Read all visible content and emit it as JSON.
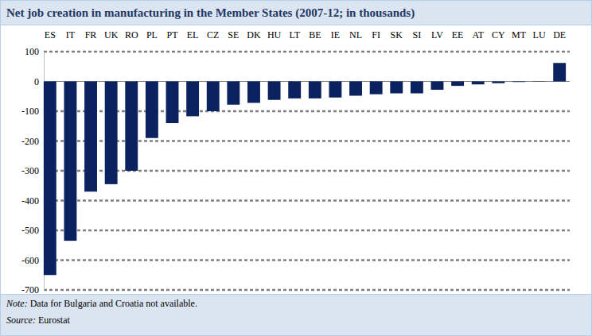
{
  "chart_data": {
    "type": "bar",
    "title": "Net job creation in manufacturing in the Member States (2007-12; in thousands)",
    "categories": [
      "ES",
      "IT",
      "FR",
      "UK",
      "RO",
      "PL",
      "PT",
      "EL",
      "CZ",
      "SE",
      "DK",
      "HU",
      "LT",
      "BE",
      "IE",
      "NL",
      "FI",
      "SK",
      "SI",
      "LV",
      "EE",
      "AT",
      "CY",
      "MT",
      "LU",
      "DE"
    ],
    "values": [
      -650,
      -535,
      -370,
      -345,
      -300,
      -190,
      -140,
      -117,
      -100,
      -78,
      -72,
      -62,
      -57,
      -57,
      -54,
      -48,
      -43,
      -40,
      -40,
      -28,
      -15,
      -10,
      -6,
      -2,
      -1,
      62
    ],
    "color": "#0b2260",
    "ylim": [
      -700,
      100
    ],
    "yticks": [
      -700,
      -600,
      -500,
      -400,
      -300,
      -200,
      -100,
      0,
      100
    ],
    "grid": true,
    "note": {
      "label": "Note:",
      "text": "Data for Bulgaria and Croatia not available."
    },
    "source": {
      "label": "Source:",
      "text": "Eurostat"
    }
  }
}
